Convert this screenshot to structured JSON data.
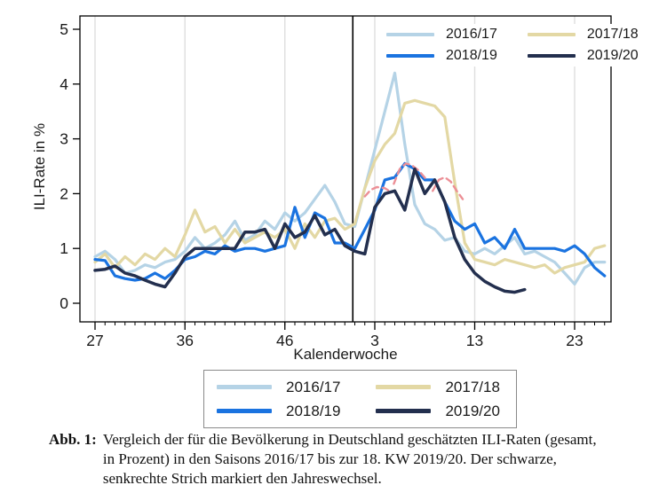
{
  "figure": {
    "caption_label": "Abb. 1:",
    "caption_text": "Vergleich der für die Bevölkerung in Deutschland geschätzten ILI-Raten (gesamt, in Prozent) in den Saisons 2016/17 bis zur 18. KW 2019/20. Der schwarze, senkrechte Strich markiert den Jahreswechsel."
  },
  "chart_data": {
    "type": "line",
    "title": "",
    "xlabel": "Kalenderwoche",
    "ylabel": "ILI-Rate in %",
    "ylim": [
      0,
      5
    ],
    "yticks": [
      0,
      1,
      2,
      3,
      4,
      5
    ],
    "grid": "vertical-gridlines-at-major-x-ticks",
    "legend_position": [
      "top-right-inside",
      "below-chart"
    ],
    "weeks": [
      27,
      28,
      29,
      30,
      31,
      32,
      33,
      34,
      35,
      36,
      37,
      38,
      39,
      40,
      41,
      42,
      43,
      44,
      45,
      46,
      47,
      48,
      49,
      50,
      51,
      52,
      1,
      2,
      3,
      4,
      5,
      6,
      7,
      8,
      9,
      10,
      11,
      12,
      13,
      14,
      15,
      16,
      17,
      18,
      19,
      20,
      21,
      22,
      23,
      24,
      25,
      26
    ],
    "xticks": [
      {
        "label": "27",
        "index": 0
      },
      {
        "label": "36",
        "index": 9
      },
      {
        "label": "46",
        "index": 19
      },
      {
        "label": "3",
        "index": 28
      },
      {
        "label": "13",
        "index": 38
      },
      {
        "label": "23",
        "index": 48
      }
    ],
    "year_divider": {
      "between_weeks": "52/1",
      "index_position": 25.8,
      "color": "#000000"
    },
    "series": [
      {
        "name": "2016/17",
        "color": "#b5d3e6",
        "width": 3.2,
        "values": [
          0.85,
          0.95,
          0.8,
          0.55,
          0.6,
          0.7,
          0.65,
          0.75,
          0.8,
          0.95,
          1.2,
          1.0,
          1.1,
          1.25,
          1.5,
          1.15,
          1.25,
          1.5,
          1.35,
          1.65,
          1.5,
          1.65,
          1.9,
          2.15,
          1.85,
          1.45,
          1.4,
          2.1,
          2.8,
          3.5,
          4.2,
          2.9,
          1.8,
          1.45,
          1.35,
          1.15,
          1.2,
          0.95,
          0.9,
          1.0,
          0.9,
          1.05,
          1.2,
          0.9,
          0.95,
          0.85,
          0.75,
          0.55,
          0.35,
          0.65,
          0.75,
          0.75
        ]
      },
      {
        "name": "2017/18",
        "color": "#e3d8a4",
        "width": 3.2,
        "values": [
          0.75,
          0.9,
          0.65,
          0.85,
          0.7,
          0.9,
          0.8,
          1.0,
          0.85,
          1.25,
          1.7,
          1.3,
          1.4,
          1.1,
          1.35,
          1.1,
          1.2,
          1.3,
          1.2,
          1.35,
          1.0,
          1.45,
          1.2,
          1.5,
          1.55,
          1.35,
          1.45,
          2.1,
          2.6,
          2.9,
          3.1,
          3.65,
          3.7,
          3.65,
          3.6,
          3.4,
          2.2,
          1.1,
          0.8,
          0.75,
          0.7,
          0.8,
          0.75,
          0.7,
          0.65,
          0.7,
          0.55,
          0.65,
          0.7,
          0.75,
          1.0,
          1.05
        ]
      },
      {
        "name": "2018/19",
        "color": "#1a73e0",
        "width": 3.2,
        "values": [
          0.8,
          0.78,
          0.5,
          0.45,
          0.42,
          0.45,
          0.55,
          0.45,
          0.6,
          0.8,
          0.85,
          0.95,
          0.9,
          1.05,
          0.95,
          1.0,
          1.0,
          0.95,
          1.0,
          1.05,
          1.75,
          1.2,
          1.65,
          1.55,
          1.1,
          1.1,
          1.0,
          1.35,
          1.7,
          2.25,
          2.3,
          2.55,
          2.45,
          2.25,
          2.25,
          1.85,
          1.5,
          1.35,
          1.45,
          1.1,
          1.2,
          1.0,
          1.35,
          1.0,
          1.0,
          1.0,
          1.0,
          0.95,
          1.05,
          0.9,
          0.65,
          0.5
        ]
      },
      {
        "name": "2019/20",
        "color": "#232f4e",
        "width": 3.5,
        "values": [
          0.6,
          0.62,
          0.68,
          0.55,
          0.5,
          0.42,
          0.35,
          0.3,
          0.55,
          0.85,
          1.0,
          1.0,
          1.0,
          1.0,
          1.0,
          1.3,
          1.3,
          1.35,
          1.0,
          1.45,
          1.2,
          1.3,
          1.6,
          1.25,
          1.35,
          1.05,
          0.95,
          0.9,
          1.75,
          2.0,
          2.05,
          1.7,
          2.45,
          2.0,
          2.25,
          1.85,
          1.2,
          0.8,
          0.55,
          0.4,
          0.3,
          0.22,
          0.2,
          0.25,
          null,
          null,
          null,
          null,
          null,
          null,
          null,
          null
        ]
      }
    ],
    "reference_dashed_segments": {
      "color": "#ec8f96",
      "style": "dashed",
      "segments": [
        [
          [
            27.0,
            1.95
          ],
          [
            27.6,
            2.07
          ],
          [
            28.2,
            2.12
          ],
          [
            29.0,
            2.1
          ],
          [
            29.6,
            2.03
          ]
        ],
        [
          [
            29.9,
            2.18
          ],
          [
            30.5,
            2.45
          ],
          [
            31.1,
            2.55
          ],
          [
            31.7,
            2.52
          ],
          [
            32.4,
            2.42
          ],
          [
            33.2,
            2.25
          ]
        ],
        [
          [
            33.8,
            2.05
          ],
          [
            34.4,
            2.25
          ],
          [
            35.0,
            2.3
          ],
          [
            35.6,
            2.22
          ],
          [
            36.2,
            2.05
          ],
          [
            36.8,
            1.9
          ]
        ]
      ]
    }
  }
}
